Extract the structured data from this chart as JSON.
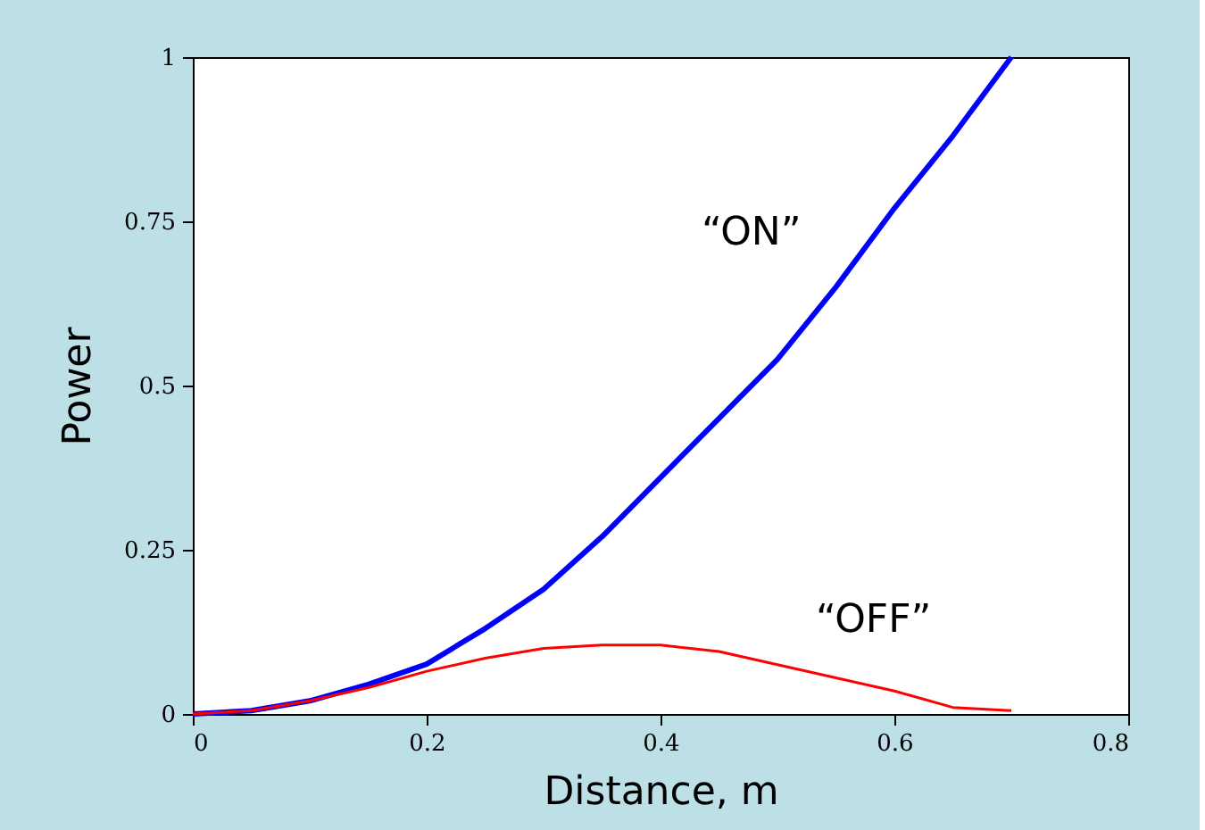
{
  "chart_data": {
    "type": "line",
    "xlabel": "Distance, m",
    "ylabel": "Power",
    "x": [
      0,
      0.05,
      0.1,
      0.15,
      0.2,
      0.25,
      0.3,
      0.35,
      0.4,
      0.45,
      0.5,
      0.55,
      0.6,
      0.65,
      0.7
    ],
    "series": [
      {
        "color": "#0000ff",
        "values": [
          0,
          0.005,
          0.02,
          0.045,
          0.076,
          0.13,
          0.19,
          0.27,
          0.36,
          0.45,
          0.54,
          0.65,
          0.77,
          0.88,
          1.0
        ]
      },
      {
        "color": "#ff0000",
        "values": [
          0,
          0.005,
          0.02,
          0.04,
          0.065,
          0.085,
          0.1,
          0.105,
          0.105,
          0.095,
          0.075,
          0.055,
          0.035,
          0.01,
          0.005
        ]
      }
    ],
    "annotations": [
      "“ON”",
      "“OFF”"
    ],
    "xlim": [
      0,
      0.8
    ],
    "xticks": [
      0,
      0.2,
      0.4,
      0.6,
      0.8
    ],
    "ylim": [
      0,
      1
    ],
    "yticks": [
      0,
      0.25,
      0.5,
      0.75,
      1
    ],
    "grid": false,
    "legend": false
  }
}
